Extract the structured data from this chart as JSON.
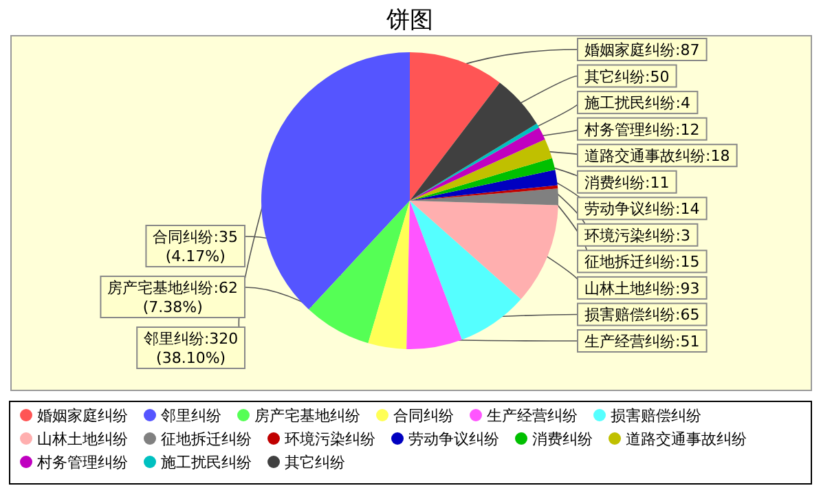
{
  "chart_data": {
    "type": "pie",
    "title": "饼图",
    "categories": [
      "婚姻家庭纠纷",
      "邻里纠纷",
      "房产宅基地纠纷",
      "合同纠纷",
      "生产经营纠纷",
      "损害赔偿纠纷",
      "山林土地纠纷",
      "征地拆迁纠纷",
      "环境污染纠纷",
      "劳动争议纠纷",
      "消费纠纷",
      "道路交通事故纠纷",
      "村务管理纠纷",
      "施工扰民纠纷",
      "其它纠纷"
    ],
    "values": [
      87,
      320,
      62,
      35,
      51,
      65,
      93,
      15,
      3,
      14,
      11,
      18,
      12,
      4,
      50
    ],
    "value_labels": [
      "婚姻家庭纠纷:87",
      "邻里纠纷:320 (38.10%)",
      "房产宅基地纠纷:62 (7.38%)",
      "合同纠纷:35 (4.17%)",
      "生产经营纠纷:51",
      "损害赔偿纠纷:65",
      "山林土地纠纷:93",
      "征地拆迁纠纷:15",
      "环境污染纠纷:3",
      "劳动争议纠纷:14",
      "消费纠纷:11",
      "道路交通事故纠纷:18",
      "村务管理纠纷:12",
      "施工扰民纠纷:4",
      "其它纠纷:50"
    ],
    "colors": [
      "#ff5555",
      "#5555ff",
      "#55ff55",
      "#ffff55",
      "#ff55ff",
      "#55ffff",
      "#ffafaf",
      "#808080",
      "#c00000",
      "#0000c0",
      "#00c000",
      "#c0c000",
      "#c000c0",
      "#00c0c0",
      "#404040"
    ],
    "legend": "bottom"
  }
}
